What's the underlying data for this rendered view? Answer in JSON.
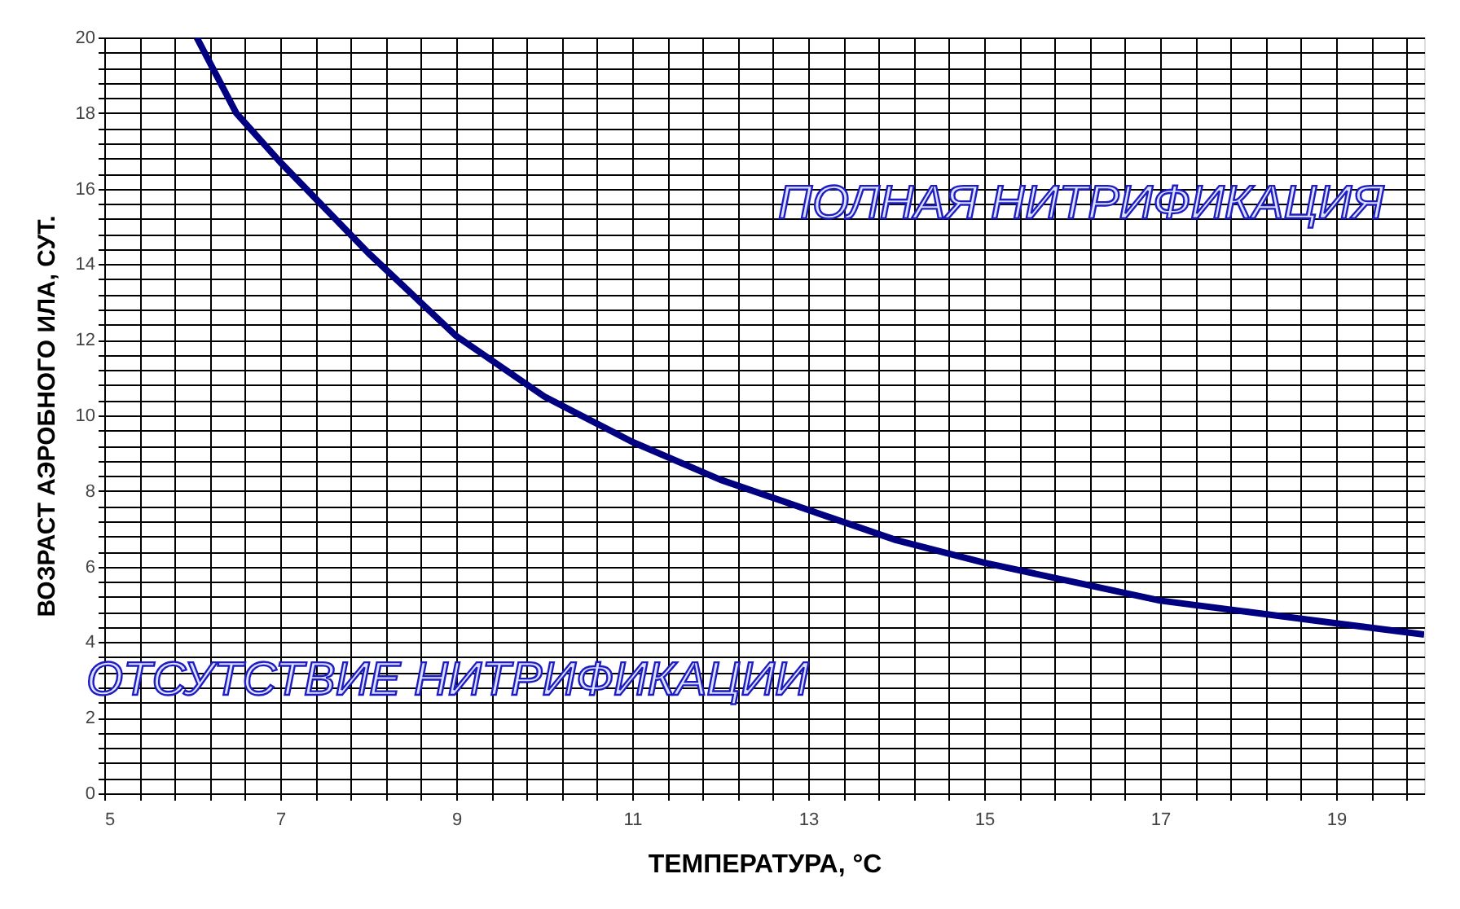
{
  "chart_data": {
    "type": "line",
    "xlabel": "ТЕМПЕРАТУРА, °С",
    "ylabel": "ВОЗРАСТ АЭРОБНОГО ИЛА, СУТ.",
    "annotations": [
      "ПОЛНАЯ НИТРИФИКАЦИЯ",
      "ОТСУТСТВИЕ НИТРИФИКАЦИИ"
    ],
    "x": [
      6.05,
      6.5,
      7,
      8,
      9,
      10,
      11,
      12,
      13,
      14,
      15,
      16,
      17,
      18,
      19,
      20
    ],
    "series": [
      {
        "color": "#000080",
        "values": [
          20,
          18.0,
          16.7,
          14.3,
          12.1,
          10.5,
          9.3,
          8.3,
          7.5,
          6.7,
          6.1,
          5.6,
          5.1,
          4.8,
          4.5,
          4.2
        ]
      }
    ],
    "xlim": [
      5,
      20
    ],
    "ylim": [
      0,
      20
    ],
    "xticks": [
      5,
      {
        "value": 5.4,
        "label": null
      },
      {
        "value": 5.8,
        "label": null
      },
      {
        "value": 6.2,
        "label": null
      },
      {
        "value": 6.6,
        "label": null
      },
      7,
      {
        "value": 7.4,
        "label": null
      },
      {
        "value": 7.8,
        "label": null
      },
      {
        "value": 8.2,
        "label": null
      },
      {
        "value": 8.6,
        "label": null
      },
      9,
      {
        "value": 9.4,
        "label": null
      },
      {
        "value": 9.8,
        "label": null
      },
      {
        "value": 10.2,
        "label": null
      },
      {
        "value": 10.6,
        "label": null
      },
      11,
      {
        "value": 11.4,
        "label": null
      },
      {
        "value": 11.8,
        "label": null
      },
      {
        "value": 12.2,
        "label": null
      },
      {
        "value": 12.6,
        "label": null
      },
      13,
      {
        "value": 13.4,
        "label": null
      },
      {
        "value": 13.8,
        "label": null
      },
      {
        "value": 14.2,
        "label": null
      },
      {
        "value": 14.6,
        "label": null
      },
      15,
      {
        "value": 15.4,
        "label": null
      },
      {
        "value": 15.8,
        "label": null
      },
      {
        "value": 16.2,
        "label": null
      },
      {
        "value": 16.6,
        "label": null
      },
      17,
      {
        "value": 17.4,
        "label": null
      },
      {
        "value": 17.8,
        "label": null
      },
      {
        "value": 18.2,
        "label": null
      },
      {
        "value": 18.6,
        "label": null
      },
      19,
      {
        "value": 19.4,
        "label": null
      },
      {
        "value": 19.8,
        "label": null
      }
    ],
    "yticks": [
      0,
      {
        "value": 0.4,
        "label": null
      },
      {
        "value": 0.8,
        "label": null
      },
      {
        "value": 1.2,
        "label": null
      },
      {
        "value": 1.6,
        "label": null
      },
      2,
      {
        "value": 2.4,
        "label": null
      },
      {
        "value": 2.8,
        "label": null
      },
      {
        "value": 3.2,
        "label": null
      },
      {
        "value": 3.6,
        "label": null
      },
      4,
      {
        "value": 4.4,
        "label": null
      },
      {
        "value": 4.8,
        "label": null
      },
      {
        "value": 5.2,
        "label": null
      },
      {
        "value": 5.6,
        "label": null
      },
      6,
      {
        "value": 6.4,
        "label": null
      },
      {
        "value": 6.8,
        "label": null
      },
      {
        "value": 7.2,
        "label": null
      },
      {
        "value": 7.6,
        "label": null
      },
      8,
      {
        "value": 8.4,
        "label": null
      },
      {
        "value": 8.8,
        "label": null
      },
      {
        "value": 9.2,
        "label": null
      },
      {
        "value": 9.6,
        "label": null
      },
      10,
      {
        "value": 10.4,
        "label": null
      },
      {
        "value": 10.8,
        "label": null
      },
      {
        "value": 11.2,
        "label": null
      },
      {
        "value": 11.6,
        "label": null
      },
      12,
      {
        "value": 12.4,
        "label": null
      },
      {
        "value": 12.8,
        "label": null
      },
      {
        "value": 13.2,
        "label": null
      },
      {
        "value": 13.6,
        "label": null
      },
      14,
      {
        "value": 14.4,
        "label": null
      },
      {
        "value": 14.8,
        "label": null
      },
      {
        "value": 15.2,
        "label": null
      },
      {
        "value": 15.6,
        "label": null
      },
      16,
      {
        "value": 16.4,
        "label": null
      },
      {
        "value": 16.8,
        "label": null
      },
      {
        "value": 17.2,
        "label": null
      },
      {
        "value": 17.6,
        "label": null
      },
      18,
      {
        "value": 18.4,
        "label": null
      },
      {
        "value": 18.8,
        "label": null
      },
      {
        "value": 19.2,
        "label": null
      },
      {
        "value": 19.6,
        "label": null
      },
      20
    ],
    "grid": true,
    "legend": false,
    "marker": "none",
    "line_style": "solid"
  }
}
